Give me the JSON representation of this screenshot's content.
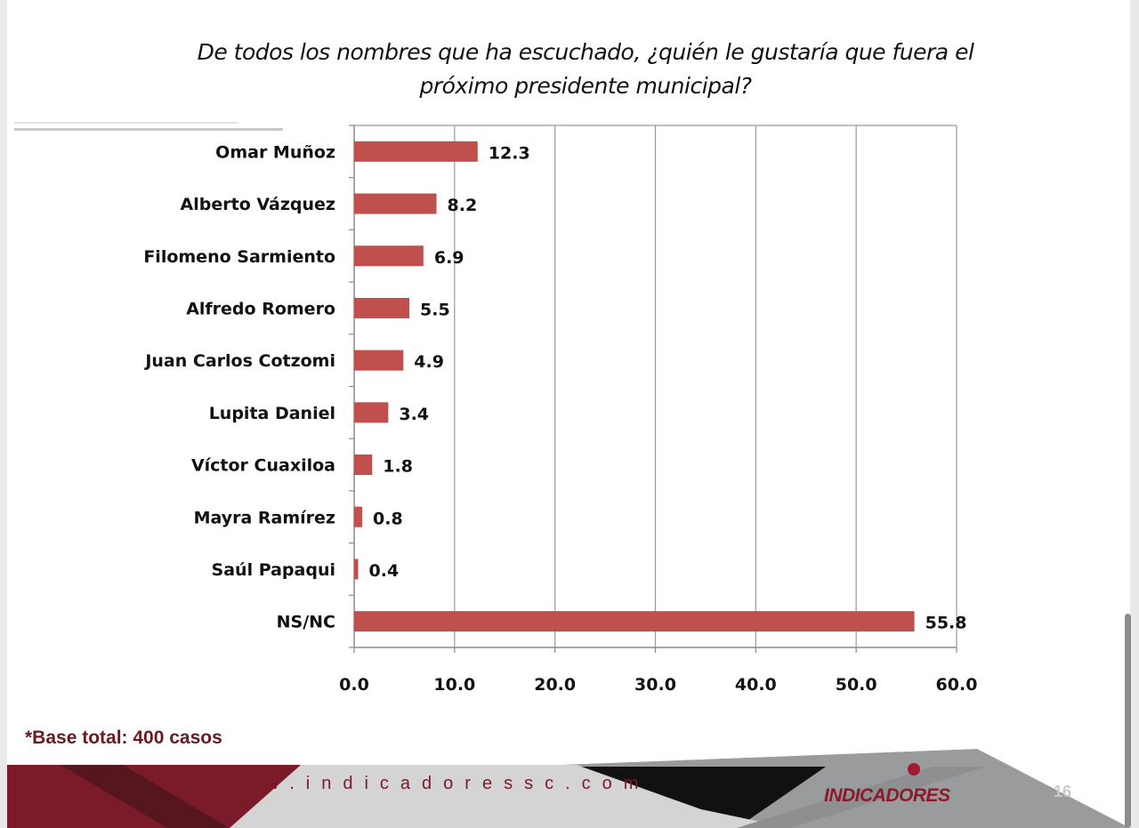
{
  "title": {
    "line1": "De todos los nombres que ha escuchado, ¿quién le gustaría que fuera el",
    "line2": "próximo presidente municipal?"
  },
  "chart_data": {
    "type": "bar",
    "orientation": "horizontal",
    "categories": [
      "Omar Muñoz",
      "Alberto Vázquez",
      "Filomeno Sarmiento",
      "Alfredo Romero",
      "Juan Carlos Cotzomi",
      "Lupita Daniel",
      "Víctor Cuaxiloa",
      "Mayra Ramírez",
      "Saúl Papaqui",
      "NS/NC"
    ],
    "values": [
      12.3,
      8.2,
      6.9,
      5.5,
      4.9,
      3.4,
      1.8,
      0.8,
      0.4,
      55.8
    ],
    "value_labels": [
      "12.3",
      "8.2",
      "6.9",
      "5.5",
      "4.9",
      "3.4",
      "1.8",
      "0.8",
      "0.4",
      "55.8"
    ],
    "xlim": [
      0,
      60
    ],
    "x_ticks": [
      0,
      10,
      20,
      30,
      40,
      50,
      60
    ],
    "x_tick_labels": [
      "0.0",
      "10.0",
      "20.0",
      "30.0",
      "40.0",
      "50.0",
      "60.0"
    ],
    "grid": true,
    "bar_color": "#c0504d"
  },
  "note": "*Base total: 400 casos",
  "footer": {
    "url": "www.indicadoressc.com",
    "logo": "INDICADORES",
    "page": "16"
  },
  "colors": {
    "maroon": "#7b1a29",
    "dark": "#111111",
    "gray": "#9a9a9a"
  }
}
